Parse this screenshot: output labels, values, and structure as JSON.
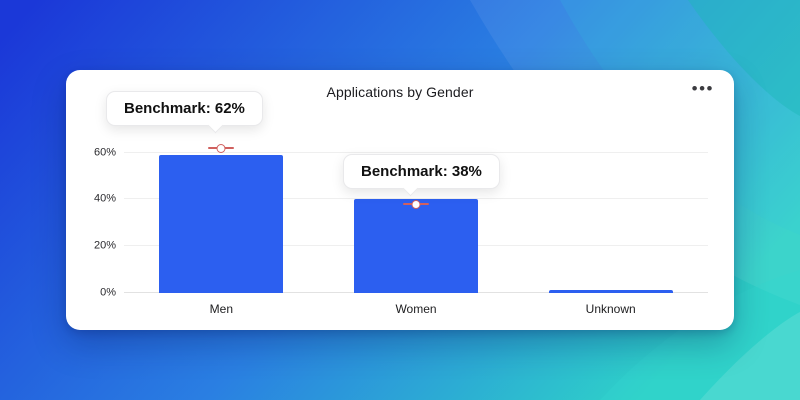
{
  "header": {
    "title": "Applications by Gender",
    "more_options_icon": "•••"
  },
  "chart_data": {
    "type": "bar",
    "title": "Applications by Gender",
    "categories": [
      "Men",
      "Women",
      "Unknown"
    ],
    "values": [
      59,
      40,
      1.5
    ],
    "value_unit": "%",
    "benchmarks": [
      62,
      38,
      null
    ],
    "benchmark_tooltips": [
      "Benchmark: 62%",
      "Benchmark: 38%"
    ],
    "yticks": [
      "0%",
      "20%",
      "40%",
      "60%"
    ],
    "ytick_values": [
      0,
      20,
      40,
      60
    ],
    "ylim": [
      0,
      65
    ],
    "grid": true,
    "legend": false,
    "colors": {
      "bar": "#2c5ff0",
      "benchmark": "#d0605e",
      "card": "#ffffff",
      "background_gradient": [
        "#1b38d8",
        "#2a7fe2",
        "#2ed1c8"
      ]
    }
  }
}
